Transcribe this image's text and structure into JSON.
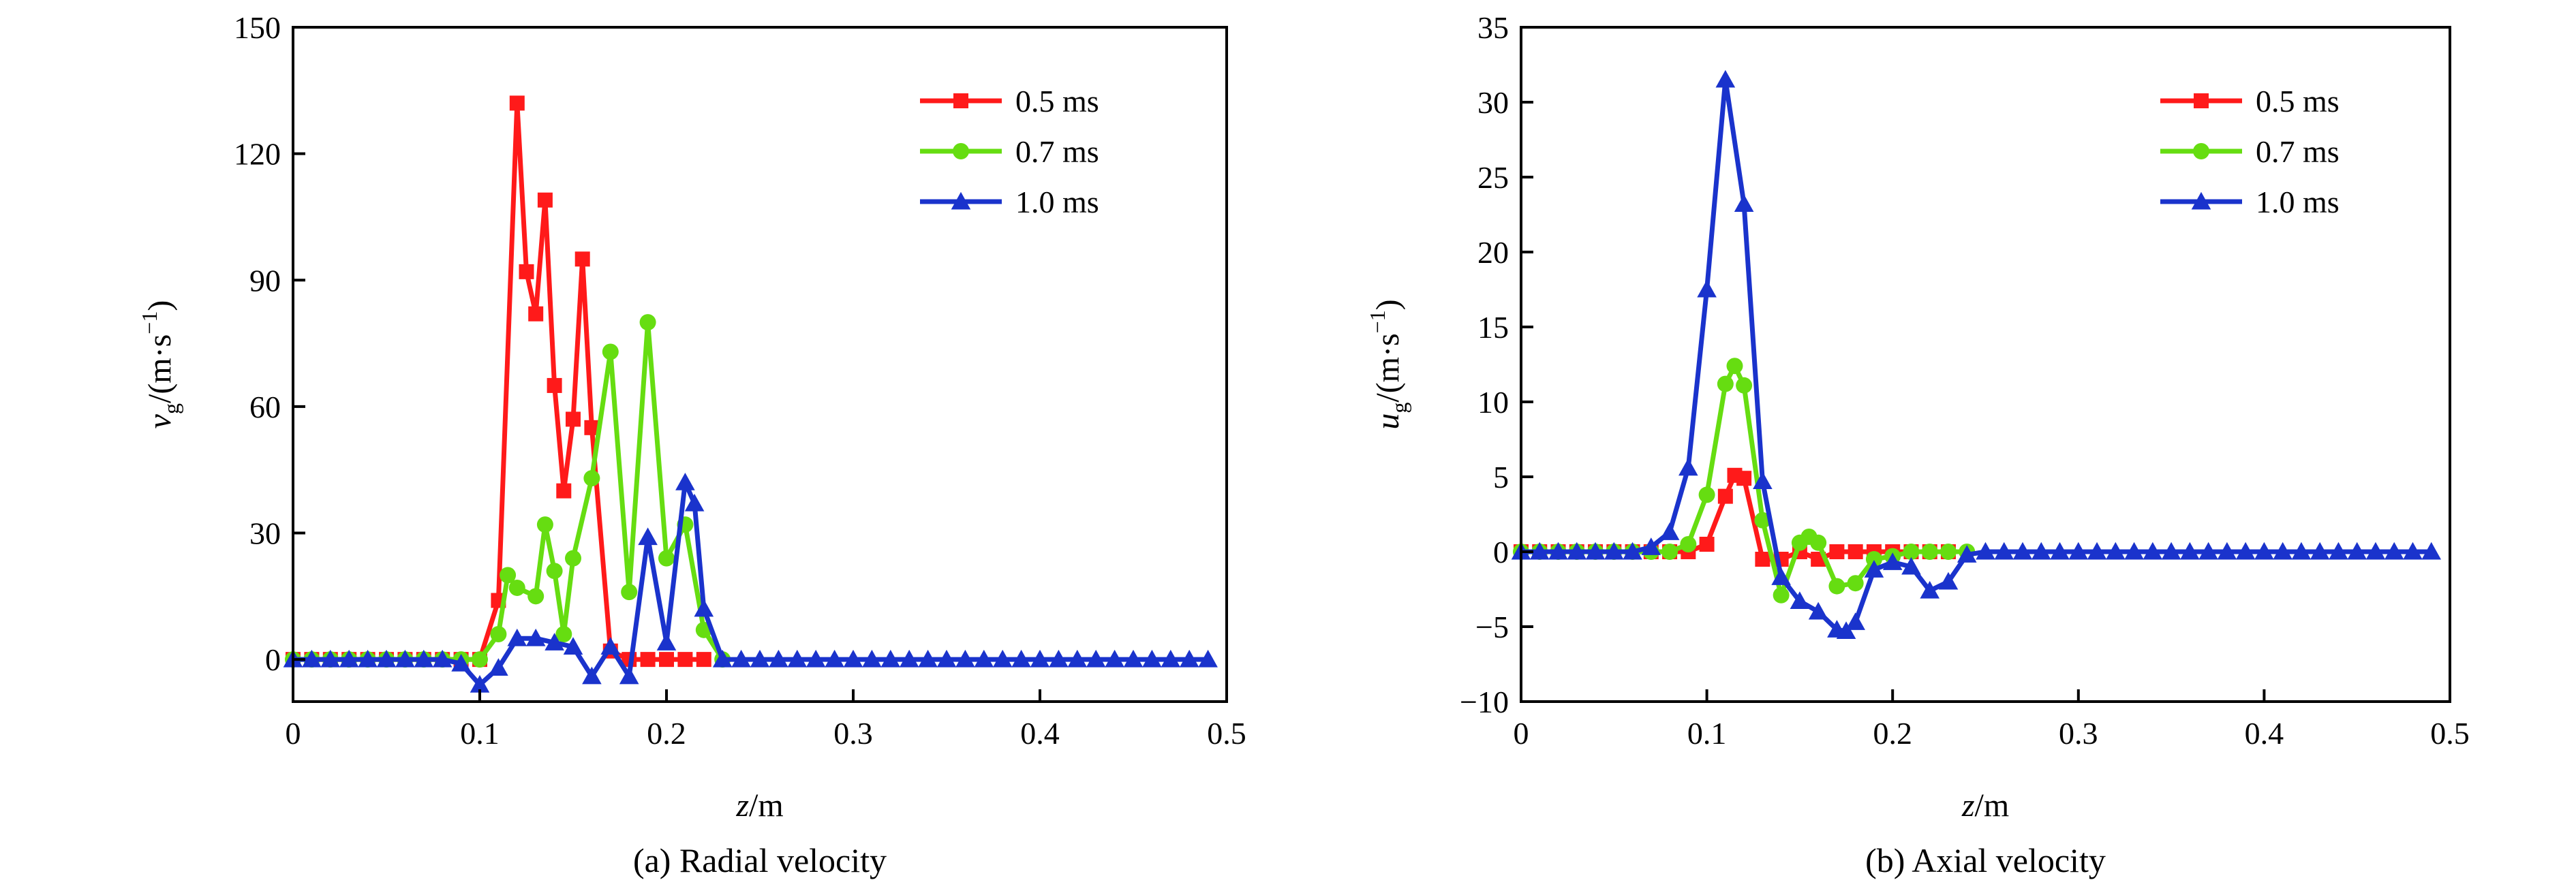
{
  "chart_data": [
    {
      "type": "line",
      "caption": "(a) Radial velocity",
      "xlabel": {
        "var": "z",
        "unit": "/m"
      },
      "ylabel": {
        "var": "v",
        "sub": "g",
        "unit_pre": "/(m·s",
        "sup": "−1",
        "unit_post": ")"
      },
      "xlim": [
        0,
        0.5
      ],
      "ylim": [
        -10,
        150
      ],
      "xticks": [
        0,
        0.1,
        0.2,
        0.3,
        0.4,
        0.5
      ],
      "xtick_labels": [
        "0",
        "0.1",
        "0.2",
        "0.3",
        "0.4",
        "0.5"
      ],
      "yticks": [
        0,
        30,
        60,
        90,
        120,
        150
      ],
      "ytick_labels": [
        "0",
        "30",
        "60",
        "90",
        "120",
        "150"
      ],
      "legend": "top-right",
      "grid": false,
      "series": [
        {
          "name": "0.5 ms",
          "color": "#ff1a1a",
          "marker": "square",
          "x": [
            0,
            0.01,
            0.02,
            0.03,
            0.04,
            0.05,
            0.06,
            0.07,
            0.08,
            0.09,
            0.1,
            0.11,
            0.12,
            0.125,
            0.13,
            0.135,
            0.14,
            0.145,
            0.15,
            0.155,
            0.16,
            0.17,
            0.18,
            0.19,
            0.2,
            0.21,
            0.22
          ],
          "y": [
            0,
            0,
            0,
            0,
            0,
            0,
            0,
            0,
            0,
            0,
            0,
            14,
            132,
            92,
            82,
            109,
            65,
            40,
            57,
            95,
            55,
            2,
            0,
            0,
            0,
            0,
            0
          ]
        },
        {
          "name": "0.7 ms",
          "color": "#66dd11",
          "marker": "circle",
          "x": [
            0,
            0.01,
            0.02,
            0.03,
            0.04,
            0.05,
            0.06,
            0.07,
            0.08,
            0.09,
            0.1,
            0.11,
            0.115,
            0.12,
            0.13,
            0.135,
            0.14,
            0.145,
            0.15,
            0.16,
            0.17,
            0.18,
            0.19,
            0.2,
            0.21,
            0.22,
            0.23
          ],
          "y": [
            0,
            0,
            0,
            0,
            0,
            0,
            0,
            0,
            0,
            0,
            0,
            6,
            20,
            17,
            15,
            32,
            21,
            6,
            24,
            43,
            73,
            16,
            80,
            24,
            32,
            7,
            0
          ]
        },
        {
          "name": "1.0 ms",
          "color": "#1a33cc",
          "marker": "triangle",
          "x": [
            0,
            0.01,
            0.02,
            0.03,
            0.04,
            0.05,
            0.06,
            0.07,
            0.08,
            0.09,
            0.1,
            0.11,
            0.12,
            0.13,
            0.14,
            0.15,
            0.16,
            0.17,
            0.18,
            0.19,
            0.2,
            0.21,
            0.215,
            0.22,
            0.23,
            0.24,
            0.25,
            0.26,
            0.27,
            0.28,
            0.29,
            0.3,
            0.31,
            0.32,
            0.33,
            0.34,
            0.35,
            0.36,
            0.37,
            0.38,
            0.39,
            0.4,
            0.41,
            0.42,
            0.43,
            0.44,
            0.45,
            0.46,
            0.47,
            0.48,
            0.49
          ],
          "y": [
            0,
            0,
            0,
            0,
            0,
            0,
            0,
            0,
            0,
            -1,
            -6,
            -2,
            5,
            5,
            4,
            3,
            -4,
            3,
            -4,
            29,
            4,
            42,
            37,
            12,
            0,
            0,
            0,
            0,
            0,
            0,
            0,
            0,
            0,
            0,
            0,
            0,
            0,
            0,
            0,
            0,
            0,
            0,
            0,
            0,
            0,
            0,
            0,
            0,
            0,
            0,
            0
          ]
        }
      ]
    },
    {
      "type": "line",
      "caption": "(b) Axial velocity",
      "xlabel": {
        "var": "z",
        "unit": "/m"
      },
      "ylabel": {
        "var": "u",
        "sub": "g",
        "unit_pre": "/(m·s",
        "sup": "−1",
        "unit_post": ")"
      },
      "xlim": [
        0,
        0.5
      ],
      "ylim": [
        -10,
        35
      ],
      "xticks": [
        0,
        0.1,
        0.2,
        0.3,
        0.4,
        0.5
      ],
      "xtick_labels": [
        "0",
        "0.1",
        "0.2",
        "0.3",
        "0.4",
        "0.5"
      ],
      "yticks": [
        -10,
        -5,
        0,
        5,
        10,
        15,
        20,
        25,
        30,
        35
      ],
      "ytick_labels": [
        "−10",
        "−5",
        "0",
        "5",
        "10",
        "15",
        "20",
        "25",
        "30",
        "35"
      ],
      "legend": "top-right",
      "grid": false,
      "series": [
        {
          "name": "0.5 ms",
          "color": "#ff1a1a",
          "marker": "square",
          "x": [
            0,
            0.01,
            0.02,
            0.03,
            0.04,
            0.05,
            0.06,
            0.07,
            0.08,
            0.09,
            0.1,
            0.11,
            0.115,
            0.12,
            0.13,
            0.14,
            0.15,
            0.16,
            0.17,
            0.18,
            0.19,
            0.2,
            0.21,
            0.22,
            0.23
          ],
          "y": [
            0,
            0,
            0,
            0,
            0,
            0,
            0,
            0,
            0,
            0,
            0.5,
            3.7,
            5.1,
            4.9,
            -0.5,
            -0.5,
            0,
            -0.5,
            0,
            0,
            0,
            0,
            0,
            0,
            0
          ]
        },
        {
          "name": "0.7 ms",
          "color": "#66dd11",
          "marker": "circle",
          "x": [
            0,
            0.01,
            0.02,
            0.03,
            0.04,
            0.05,
            0.06,
            0.07,
            0.08,
            0.09,
            0.1,
            0.11,
            0.115,
            0.12,
            0.13,
            0.14,
            0.15,
            0.155,
            0.16,
            0.17,
            0.18,
            0.19,
            0.2,
            0.21,
            0.22,
            0.23,
            0.24
          ],
          "y": [
            0,
            0,
            0,
            0,
            0,
            0,
            0,
            0,
            0,
            0.5,
            3.8,
            11.2,
            12.4,
            11.1,
            2.1,
            -2.9,
            0.6,
            1.0,
            0.6,
            -2.3,
            -2.1,
            -0.5,
            -0.3,
            0,
            0,
            0,
            0
          ]
        },
        {
          "name": "1.0 ms",
          "color": "#1a33cc",
          "marker": "triangle",
          "x": [
            0,
            0.01,
            0.02,
            0.03,
            0.04,
            0.05,
            0.06,
            0.07,
            0.08,
            0.09,
            0.1,
            0.11,
            0.12,
            0.13,
            0.14,
            0.15,
            0.16,
            0.17,
            0.175,
            0.18,
            0.19,
            0.2,
            0.21,
            0.22,
            0.23,
            0.24,
            0.25,
            0.26,
            0.27,
            0.28,
            0.29,
            0.3,
            0.31,
            0.32,
            0.33,
            0.34,
            0.35,
            0.36,
            0.37,
            0.38,
            0.39,
            0.4,
            0.41,
            0.42,
            0.43,
            0.44,
            0.45,
            0.46,
            0.47,
            0.48,
            0.49
          ],
          "y": [
            0,
            0,
            0,
            0,
            0,
            0,
            0,
            0.3,
            1.3,
            5.6,
            17.5,
            31.5,
            23.2,
            4.7,
            -1.7,
            -3.3,
            -4.0,
            -5.2,
            -5.3,
            -4.7,
            -1.2,
            -0.7,
            -1.0,
            -2.6,
            -2.0,
            -0.2,
            0,
            0,
            0,
            0,
            0,
            0,
            0,
            0,
            0,
            0,
            0,
            0,
            0,
            0,
            0,
            0,
            0,
            0,
            0,
            0,
            0,
            0,
            0,
            0,
            0
          ]
        }
      ]
    }
  ]
}
